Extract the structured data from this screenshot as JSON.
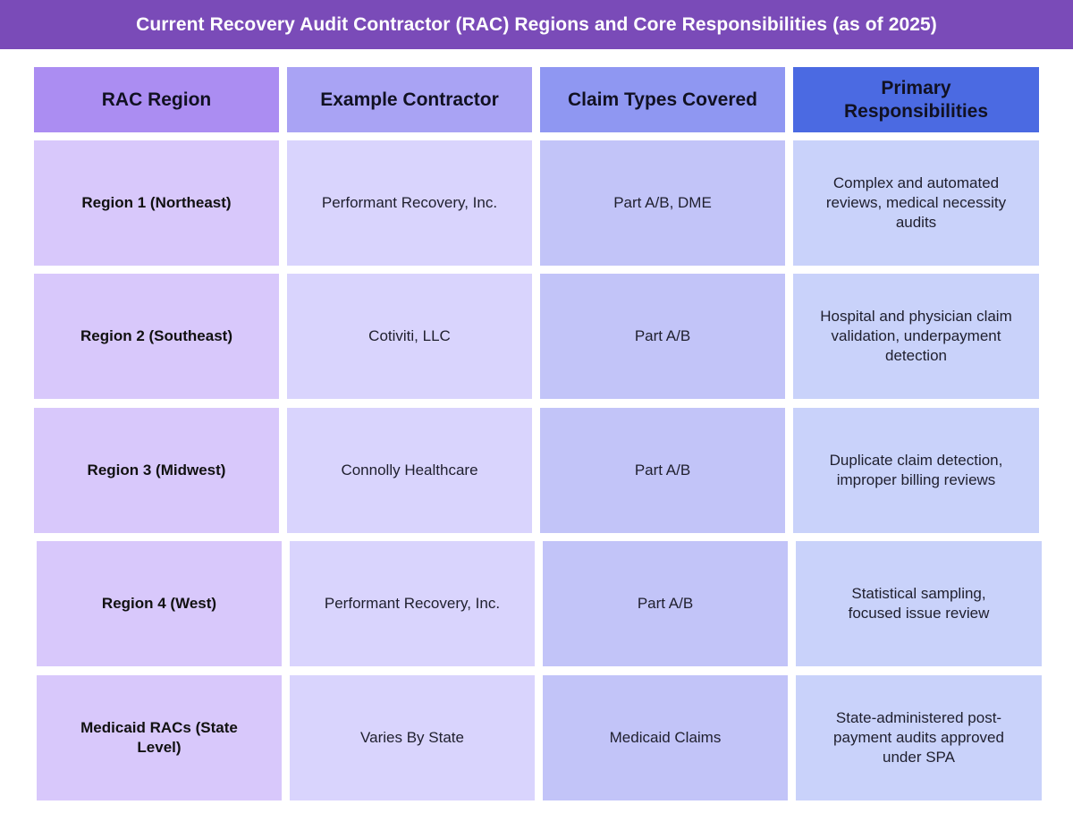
{
  "title": "Current Recovery Audit Contractor (RAC) Regions and Core Responsibilities (as of 2025)",
  "table": {
    "headers": [
      "RAC Region",
      "Example Contractor",
      "Claim Types Covered",
      "Primary Responsibilities"
    ],
    "rows": [
      [
        "Region 1 (Northeast)",
        "Performant Recovery, Inc.",
        "Part A/B, DME",
        "Complex and automated reviews, medical necessity audits"
      ],
      [
        "Region 2 (Southeast)",
        "Cotiviti, LLC",
        "Part A/B",
        "Hospital and physician claim validation, underpayment detection"
      ],
      [
        "Region 3 (Midwest)",
        "Connolly Healthcare",
        "Part A/B",
        "Duplicate claim detection, improper billing reviews"
      ],
      [
        "Region 4 (West)",
        "Performant Recovery, Inc.",
        "Part A/B",
        "Statistical sampling, focused issue review"
      ],
      [
        "Medicaid RACs (State Level)",
        "Varies By State",
        "Medicaid Claims",
        "State-administered post-payment audits approved under SPA"
      ]
    ]
  },
  "colors": {
    "banner": "#7a4bb8",
    "header": [
      "#ab8df2",
      "#a9a3f4",
      "#8f97f2",
      "#4b6ae2"
    ],
    "body": [
      "#d8c8fb",
      "#d9d4fd",
      "#c2c4f8",
      "#c9d2fa"
    ]
  }
}
